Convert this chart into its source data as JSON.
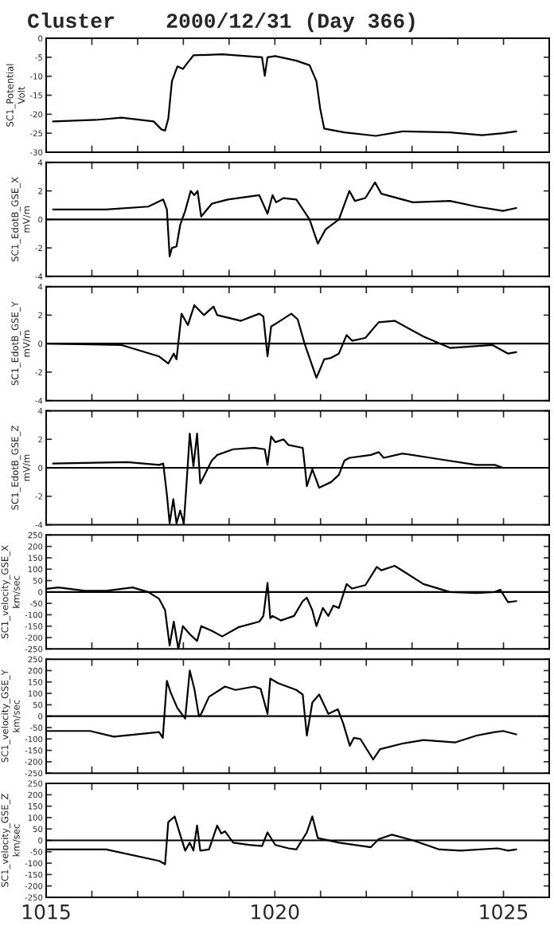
{
  "chart_data": [
    {
      "type": "line",
      "title": "Cluster    2000/12/31 (Day 366)",
      "ylabel": "SC1_Potential\nVolt",
      "xlim": [
        1015,
        1026
      ],
      "xticks": [
        {
          "value": 1015,
          "label": null
        },
        {
          "value": 1016,
          "label": null
        },
        {
          "value": 1017,
          "label": null
        },
        {
          "value": 1018,
          "label": null
        },
        {
          "value": 1019,
          "label": null
        },
        {
          "value": 1020,
          "label": null
        },
        {
          "value": 1021,
          "label": null
        },
        {
          "value": 1022,
          "label": null
        },
        {
          "value": 1023,
          "label": null
        },
        {
          "value": 1024,
          "label": null
        },
        {
          "value": 1025,
          "label": null
        }
      ],
      "ylim": [
        -30,
        0
      ],
      "yticks": [
        -30,
        -25,
        -20,
        -15,
        -10,
        -5,
        0
      ],
      "tick_labels": "y",
      "series": [
        {
          "color": "#000000",
          "x": [
            1015.15,
            1016.08,
            1016.65,
            1017.35,
            1017.52,
            1017.6,
            1017.67,
            1017.75,
            1017.87,
            1017.99,
            1018.07,
            1018.22,
            1018.85,
            1019.72,
            1019.78,
            1019.84,
            1020.01,
            1020.47,
            1020.76,
            1020.91,
            1020.99,
            1021.08,
            1021.52,
            1022.21,
            1022.79,
            1023.83,
            1024.53,
            1024.99,
            1025.28
          ],
          "values": [
            -21.9,
            -21.5,
            -20.9,
            -21.9,
            -24,
            -24.3,
            -21.2,
            -11.3,
            -7.4,
            -8.1,
            -6.8,
            -4.5,
            -4.2,
            -5,
            -9.9,
            -5,
            -4.7,
            -5.9,
            -7.1,
            -11.3,
            -18.4,
            -23.8,
            -24.8,
            -25.7,
            -24.5,
            -24.8,
            -25.5,
            -25,
            -24.5
          ]
        }
      ]
    },
    {
      "type": "line",
      "ylabel": "SC1_EdotB_GSE_X\nmV/m",
      "xlim": [
        1015,
        1026
      ],
      "xticks": [
        {
          "value": 1015,
          "label": null
        },
        {
          "value": 1016,
          "label": null
        },
        {
          "value": 1017,
          "label": null
        },
        {
          "value": 1018,
          "label": null
        },
        {
          "value": 1019,
          "label": null
        },
        {
          "value": 1020,
          "label": null
        },
        {
          "value": 1021,
          "label": null
        },
        {
          "value": 1022,
          "label": null
        },
        {
          "value": 1023,
          "label": null
        },
        {
          "value": 1024,
          "label": null
        },
        {
          "value": 1025,
          "label": null
        }
      ],
      "ylim": [
        -4,
        4
      ],
      "yticks": [
        -4,
        -2,
        0,
        2,
        4
      ],
      "tick_labels": "y",
      "ref_lines": [
        {
          "axis": "y",
          "value": 0,
          "color": "#000000"
        }
      ],
      "series": [
        {
          "color": "#000000",
          "x": [
            1015.15,
            1016.3,
            1017.23,
            1017.56,
            1017.64,
            1017.7,
            1017.75,
            1017.85,
            1017.93,
            1018.04,
            1018.16,
            1018.24,
            1018.31,
            1018.39,
            1018.62,
            1018.97,
            1019.66,
            1019.84,
            1019.95,
            1020.03,
            1020.19,
            1020.47,
            1020.76,
            1020.94,
            1021.11,
            1021.4,
            1021.63,
            1021.75,
            1021.98,
            1022.19,
            1022.33,
            1023.02,
            1023.83,
            1024.41,
            1024.99,
            1025.28
          ],
          "values": [
            0.7,
            0.7,
            0.9,
            1.4,
            0.7,
            -2.6,
            -2.0,
            -1.9,
            -0.4,
            0.6,
            2.0,
            1.7,
            2.0,
            0.2,
            1.1,
            1.4,
            1.7,
            0.4,
            1.7,
            1.2,
            1.5,
            1.4,
            0,
            -1.7,
            -0.7,
            0,
            2.0,
            1.3,
            1.5,
            2.6,
            1.8,
            1.2,
            1.3,
            0.9,
            0.6,
            0.8
          ]
        }
      ]
    },
    {
      "type": "line",
      "ylabel": "SC1_EdotB_GSE_Y\nmV/m",
      "xlim": [
        1015,
        1026
      ],
      "xticks": [
        {
          "value": 1015,
          "label": null
        },
        {
          "value": 1016,
          "label": null
        },
        {
          "value": 1017,
          "label": null
        },
        {
          "value": 1018,
          "label": null
        },
        {
          "value": 1019,
          "label": null
        },
        {
          "value": 1020,
          "label": null
        },
        {
          "value": 1021,
          "label": null
        },
        {
          "value": 1022,
          "label": null
        },
        {
          "value": 1023,
          "label": null
        },
        {
          "value": 1024,
          "label": null
        },
        {
          "value": 1025,
          "label": null
        }
      ],
      "ylim": [
        -4,
        4
      ],
      "yticks": [
        -4,
        -2,
        0,
        2,
        4
      ],
      "tick_labels": "y",
      "ref_lines": [
        {
          "axis": "y",
          "value": 0,
          "color": "#000000"
        }
      ],
      "series": [
        {
          "color": "#000000",
          "x": [
            1015.03,
            1016.65,
            1017.47,
            1017.67,
            1017.79,
            1017.85,
            1017.96,
            1018.1,
            1018.24,
            1018.45,
            1018.66,
            1018.74,
            1019.26,
            1019.66,
            1019.75,
            1019.84,
            1019.92,
            1020.07,
            1020.36,
            1020.5,
            1020.65,
            1020.91,
            1021.08,
            1021.23,
            1021.4,
            1021.57,
            1021.69,
            1021.98,
            1022.27,
            1022.62,
            1023.25,
            1023.83,
            1024.76,
            1025.1,
            1025.28
          ],
          "values": [
            0,
            -0.1,
            -0.9,
            -1.4,
            -0.7,
            -1.1,
            2.1,
            1.3,
            2.7,
            2.0,
            2.6,
            2.0,
            1.6,
            2.1,
            1.9,
            -0.9,
            1.2,
            1.5,
            2.1,
            1.7,
            0,
            -2.4,
            -1.1,
            -1.0,
            -0.7,
            0.6,
            0.2,
            0.4,
            1.5,
            1.6,
            0.5,
            -0.3,
            -0.1,
            -0.7,
            -0.6
          ]
        }
      ]
    },
    {
      "type": "line",
      "ylabel": "SC1_EdotB_GSE_Z\nmV/m",
      "xlim": [
        1015,
        1026
      ],
      "xticks": [
        {
          "value": 1015,
          "label": null
        },
        {
          "value": 1016,
          "label": null
        },
        {
          "value": 1017,
          "label": null
        },
        {
          "value": 1018,
          "label": null
        },
        {
          "value": 1019,
          "label": null
        },
        {
          "value": 1020,
          "label": null
        },
        {
          "value": 1021,
          "label": null
        },
        {
          "value": 1022,
          "label": null
        },
        {
          "value": 1023,
          "label": null
        },
        {
          "value": 1024,
          "label": null
        },
        {
          "value": 1025,
          "label": null
        }
      ],
      "ylim": [
        -4,
        4
      ],
      "yticks": [
        -4,
        -2,
        0,
        2,
        4
      ],
      "tick_labels": "y",
      "ref_lines": [
        {
          "axis": "y",
          "value": 0,
          "color": "#000000"
        }
      ],
      "series": [
        {
          "color": "#000000",
          "x": [
            1015.15,
            1016.77,
            1017.47,
            1017.56,
            1017.64,
            1017.7,
            1017.78,
            1017.85,
            1017.93,
            1018.01,
            1018.07,
            1018.14,
            1018.22,
            1018.3,
            1018.37,
            1018.62,
            1018.74,
            1019.09,
            1019.55,
            1019.78,
            1019.84,
            1019.92,
            1020.01,
            1020.19,
            1020.3,
            1020.61,
            1020.66,
            1020.7,
            1020.82,
            1020.97,
            1021.23,
            1021.4,
            1021.52,
            1021.63,
            1022.1,
            1022.27,
            1022.38,
            1022.79,
            1023.6,
            1024.41,
            1024.81,
            1024.99,
            1025.28
          ],
          "values": [
            0.3,
            0.4,
            0.2,
            0.3,
            -1.9,
            -3.9,
            -2.2,
            -3.9,
            -3.0,
            -3.9,
            -1.1,
            2.4,
            0.1,
            2.4,
            -1.1,
            0.5,
            0.9,
            1.3,
            1.4,
            1.3,
            0.2,
            2.2,
            1.8,
            2.0,
            1.6,
            1.4,
            0,
            -1.3,
            -0.1,
            -1.4,
            -1.0,
            -0.5,
            0.5,
            0.7,
            0.9,
            1.1,
            0.7,
            1.0,
            0.6,
            0.2,
            0.2,
            0,
            0
          ]
        }
      ]
    },
    {
      "type": "line",
      "ylabel": "SC1_velocity_GSE_X\nkm/sec",
      "xlim": [
        1015,
        1026
      ],
      "xticks": [
        {
          "value": 1015,
          "label": null
        },
        {
          "value": 1016,
          "label": null
        },
        {
          "value": 1017,
          "label": null
        },
        {
          "value": 1018,
          "label": null
        },
        {
          "value": 1019,
          "label": null
        },
        {
          "value": 1020,
          "label": null
        },
        {
          "value": 1021,
          "label": null
        },
        {
          "value": 1022,
          "label": null
        },
        {
          "value": 1023,
          "label": null
        },
        {
          "value": 1024,
          "label": null
        },
        {
          "value": 1025,
          "label": null
        }
      ],
      "ylim": [
        -250,
        250
      ],
      "yticks": [
        -250,
        -200,
        -150,
        -100,
        -50,
        0,
        50,
        100,
        150,
        200,
        250
      ],
      "tick_labels": "y",
      "ref_lines": [
        {
          "axis": "y",
          "value": 0,
          "color": "#000000"
        }
      ],
      "series": [
        {
          "color": "#000000",
          "x": [
            1015.03,
            1015.27,
            1015.85,
            1016.31,
            1016.89,
            1017.23,
            1017.47,
            1017.6,
            1017.7,
            1017.79,
            1017.89,
            1017.99,
            1018.14,
            1018.3,
            1018.39,
            1018.62,
            1018.85,
            1019.2,
            1019.66,
            1019.75,
            1019.84,
            1019.9,
            1019.95,
            1020.13,
            1020.42,
            1020.61,
            1020.7,
            1020.82,
            1020.91,
            1021.05,
            1021.17,
            1021.28,
            1021.4,
            1021.57,
            1021.69,
            1021.98,
            1022.23,
            1022.33,
            1022.62,
            1023.25,
            1023.83,
            1024.41,
            1024.81,
            1024.93,
            1025.1,
            1025.28
          ],
          "values": [
            15,
            20,
            5,
            5,
            20,
            0,
            -30,
            -80,
            -235,
            -130,
            -250,
            -150,
            -185,
            -215,
            -150,
            -170,
            -195,
            -155,
            -130,
            -105,
            40,
            -115,
            -105,
            -125,
            -105,
            -40,
            -25,
            -80,
            -150,
            -70,
            -105,
            -60,
            -70,
            35,
            15,
            30,
            110,
            95,
            115,
            35,
            0,
            -5,
            0,
            10,
            -45,
            -40
          ]
        }
      ]
    },
    {
      "type": "line",
      "ylabel": "SC1_velocity_GSE_Y\nkm/sec",
      "xlim": [
        1015,
        1026
      ],
      "xticks": [
        {
          "value": 1015,
          "label": null
        },
        {
          "value": 1016,
          "label": null
        },
        {
          "value": 1017,
          "label": null
        },
        {
          "value": 1018,
          "label": null
        },
        {
          "value": 1019,
          "label": null
        },
        {
          "value": 1020,
          "label": null
        },
        {
          "value": 1021,
          "label": null
        },
        {
          "value": 1022,
          "label": null
        },
        {
          "value": 1023,
          "label": null
        },
        {
          "value": 1024,
          "label": null
        },
        {
          "value": 1025,
          "label": null
        }
      ],
      "ylim": [
        -250,
        250
      ],
      "yticks": [
        -250,
        -200,
        -150,
        -100,
        -50,
        0,
        50,
        100,
        150,
        200,
        250
      ],
      "tick_labels": "y",
      "ref_lines": [
        {
          "axis": "y",
          "value": 0,
          "color": "#000000"
        }
      ],
      "series": [
        {
          "color": "#000000",
          "x": [
            1015.03,
            1015.96,
            1016.48,
            1017.47,
            1017.55,
            1017.64,
            1017.72,
            1017.87,
            1018.04,
            1018.14,
            1018.24,
            1018.34,
            1018.39,
            1018.56,
            1018.91,
            1019.14,
            1019.55,
            1019.69,
            1019.84,
            1019.9,
            1020.07,
            1020.47,
            1020.61,
            1020.7,
            1020.82,
            1020.97,
            1021.17,
            1021.38,
            1021.5,
            1021.64,
            1021.73,
            1021.87,
            1022.15,
            1022.3,
            1022.79,
            1023.25,
            1023.95,
            1024.41,
            1024.81,
            1024.99,
            1025.28
          ],
          "values": [
            -65,
            -65,
            -90,
            -70,
            -95,
            155,
            105,
            35,
            -10,
            200,
            120,
            0,
            10,
            85,
            130,
            115,
            130,
            120,
            10,
            165,
            145,
            115,
            95,
            -85,
            60,
            95,
            10,
            30,
            -35,
            -130,
            -95,
            -100,
            -190,
            -145,
            -120,
            -105,
            -115,
            -85,
            -70,
            -65,
            -80
          ]
        }
      ]
    },
    {
      "type": "line",
      "ylabel": "SC1_velocity_GSE_Z\nkm/sec",
      "xlim": [
        1015,
        1026
      ],
      "xticks": [
        {
          "value": 1015,
          "label": "1015"
        },
        {
          "value": 1016,
          "label": null
        },
        {
          "value": 1017,
          "label": null
        },
        {
          "value": 1018,
          "label": null
        },
        {
          "value": 1019,
          "label": null
        },
        {
          "value": 1020,
          "label": "1020"
        },
        {
          "value": 1021,
          "label": null
        },
        {
          "value": 1022,
          "label": null
        },
        {
          "value": 1023,
          "label": null
        },
        {
          "value": 1024,
          "label": null
        },
        {
          "value": 1025,
          "label": "1025"
        }
      ],
      "ylim": [
        -250,
        250
      ],
      "yticks": [
        -250,
        -200,
        -150,
        -100,
        -50,
        0,
        50,
        100,
        150,
        200,
        250
      ],
      "ref_lines": [
        {
          "axis": "y",
          "value": 0,
          "color": "#000000"
        }
      ],
      "series": [
        {
          "color": "#000000",
          "x": [
            1015.03,
            1016.31,
            1017.47,
            1017.6,
            1017.67,
            1017.81,
            1017.93,
            1018.04,
            1018.14,
            1018.22,
            1018.3,
            1018.37,
            1018.56,
            1018.74,
            1018.83,
            1018.91,
            1019.09,
            1019.43,
            1019.72,
            1019.84,
            1020.01,
            1020.3,
            1020.47,
            1020.7,
            1020.82,
            1020.94,
            1021.4,
            1022.1,
            1022.27,
            1022.56,
            1023.02,
            1023.6,
            1024.06,
            1024.87,
            1025.1,
            1025.28
          ],
          "values": [
            -40,
            -40,
            -90,
            -105,
            80,
            105,
            25,
            -45,
            -10,
            -45,
            65,
            -45,
            -40,
            65,
            30,
            40,
            -10,
            -20,
            -25,
            35,
            -20,
            -35,
            -40,
            35,
            105,
            10,
            -10,
            -30,
            5,
            25,
            0,
            -40,
            -45,
            -35,
            -45,
            -40
          ]
        }
      ]
    }
  ]
}
